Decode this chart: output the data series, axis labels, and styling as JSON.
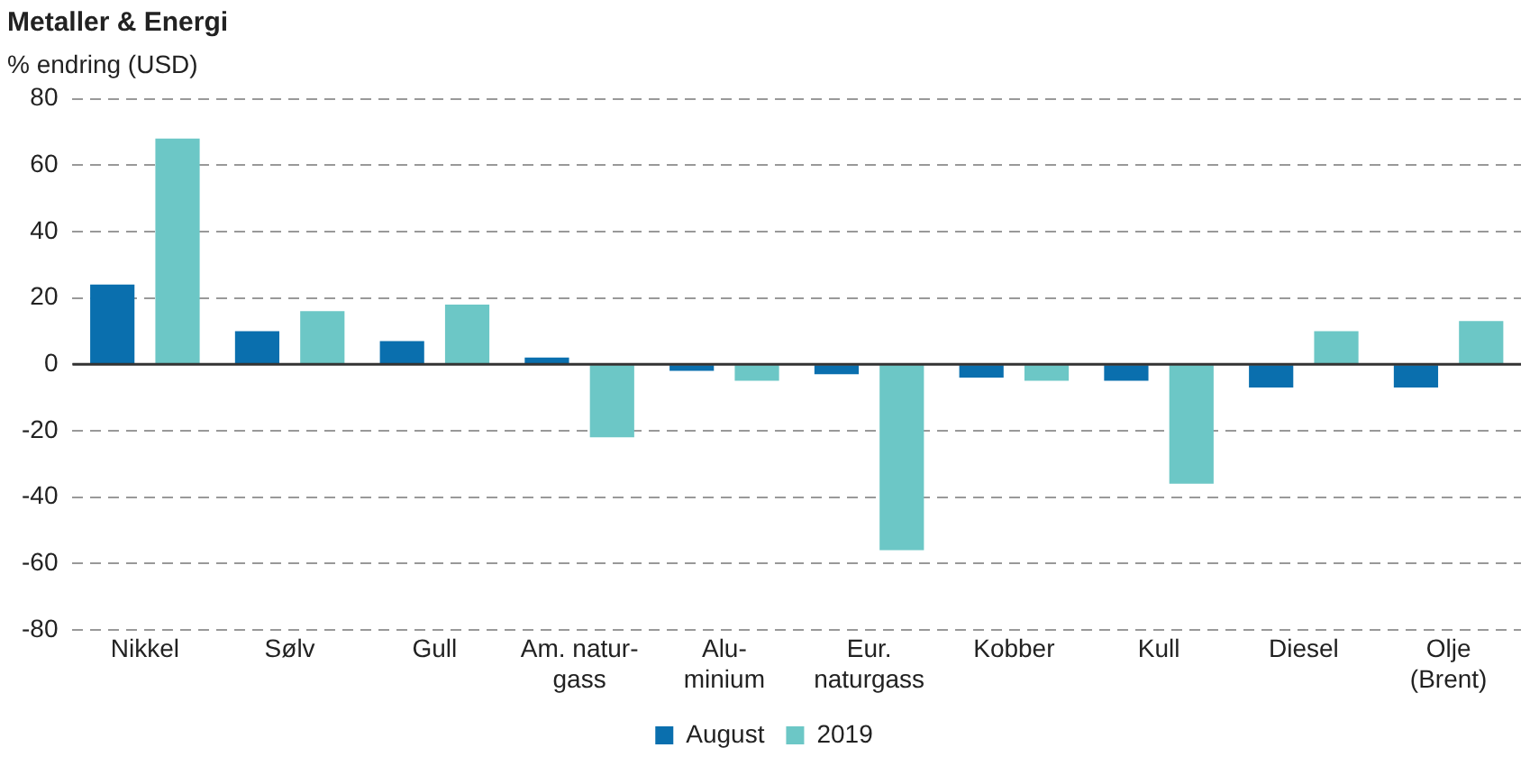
{
  "chart_data": {
    "type": "bar",
    "title": "Metaller & Energi",
    "subtitle": "% endring (USD)",
    "categories": [
      "Nikkel",
      "Sølv",
      "Gull",
      "Am. natur-\ngass",
      "Alu-\nminium",
      "Eur.\nnaturgass",
      "Kobber",
      "Kull",
      "Diesel",
      "Olje\n(Brent)"
    ],
    "series": [
      {
        "name": "August",
        "color": "#0a6fae",
        "values": [
          24,
          10,
          7,
          2,
          -2,
          -3,
          -4,
          -5,
          -7,
          -7
        ]
      },
      {
        "name": "2019",
        "color": "#6cc7c6",
        "values": [
          68,
          16,
          18,
          -22,
          -5,
          -56,
          -5,
          -36,
          10,
          13
        ]
      }
    ],
    "ylim": [
      -80,
      80
    ],
    "yticks": [
      -80,
      -60,
      -40,
      -20,
      0,
      20,
      40,
      60,
      80
    ],
    "grid": "y",
    "legend": "bottom",
    "ref_lines": [
      {
        "axis": "y",
        "value": 0,
        "color": "#333333"
      }
    ]
  }
}
